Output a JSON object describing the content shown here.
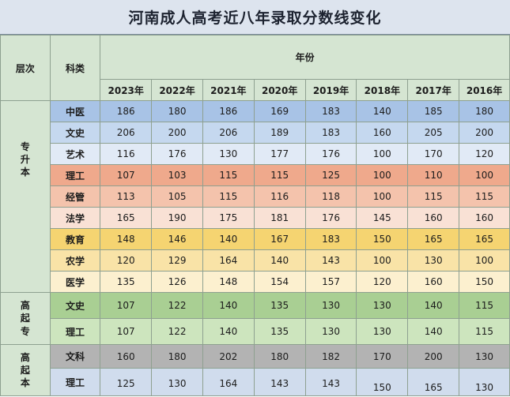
{
  "title": "河南成人高考近八年录取分数线变化",
  "header": {
    "level_label": "层次",
    "category_label": "科类",
    "years_label": "年份"
  },
  "years": [
    "2023年",
    "2022年",
    "2021年",
    "2020年",
    "2019年",
    "2018年",
    "2017年",
    "2016年"
  ],
  "groups": [
    {
      "level": [
        "专",
        "升",
        "本"
      ],
      "rows": [
        {
          "subject": "中医",
          "bg": "#a8c3e6",
          "scores": [
            "186",
            "180",
            "186",
            "169",
            "183",
            "140",
            "185",
            "180"
          ]
        },
        {
          "subject": "文史",
          "bg": "#c5d8ef",
          "scores": [
            "206",
            "200",
            "206",
            "189",
            "183",
            "160",
            "205",
            "200"
          ]
        },
        {
          "subject": "艺术",
          "bg": "#e1eaf6",
          "scores": [
            "116",
            "176",
            "130",
            "177",
            "176",
            "100",
            "170",
            "120"
          ]
        },
        {
          "subject": "理工",
          "bg": "#efa98c",
          "scores": [
            "107",
            "103",
            "115",
            "115",
            "125",
            "100",
            "110",
            "100"
          ]
        },
        {
          "subject": "经管",
          "bg": "#f4c3ac",
          "scores": [
            "113",
            "105",
            "115",
            "116",
            "118",
            "100",
            "115",
            "115"
          ]
        },
        {
          "subject": "法学",
          "bg": "#f9e1d5",
          "scores": [
            "165",
            "190",
            "175",
            "181",
            "176",
            "145",
            "160",
            "160"
          ]
        },
        {
          "subject": "教育",
          "bg": "#f5d471",
          "scores": [
            "148",
            "146",
            "140",
            "167",
            "183",
            "150",
            "165",
            "165"
          ]
        },
        {
          "subject": "农学",
          "bg": "#f9e3a7",
          "scores": [
            "120",
            "129",
            "164",
            "140",
            "143",
            "100",
            "130",
            "100"
          ]
        },
        {
          "subject": "医学",
          "bg": "#fcf0cf",
          "scores": [
            "135",
            "126",
            "148",
            "154",
            "157",
            "120",
            "160",
            "150"
          ]
        }
      ]
    },
    {
      "level": [
        "高",
        "起",
        "专"
      ],
      "rows": [
        {
          "subject": "文史",
          "bg": "#a9cf93",
          "scores": [
            "107",
            "122",
            "140",
            "135",
            "130",
            "130",
            "140",
            "115"
          ]
        },
        {
          "subject": "理工",
          "bg": "#cde5be",
          "scores": [
            "107",
            "122",
            "140",
            "135",
            "130",
            "130",
            "140",
            "115"
          ]
        }
      ]
    },
    {
      "level": [
        "高",
        "起",
        "本"
      ],
      "rows": [
        {
          "subject": "文科",
          "bg": "#b3b3b3",
          "scores": [
            "160",
            "180",
            "202",
            "180",
            "182",
            "170",
            "200",
            "130"
          ]
        },
        {
          "subject": "理工",
          "bg": "#d0dced",
          "scores": [
            "125",
            "130",
            "164",
            "143",
            "143",
            "150",
            "165",
            "130"
          ]
        }
      ]
    }
  ]
}
